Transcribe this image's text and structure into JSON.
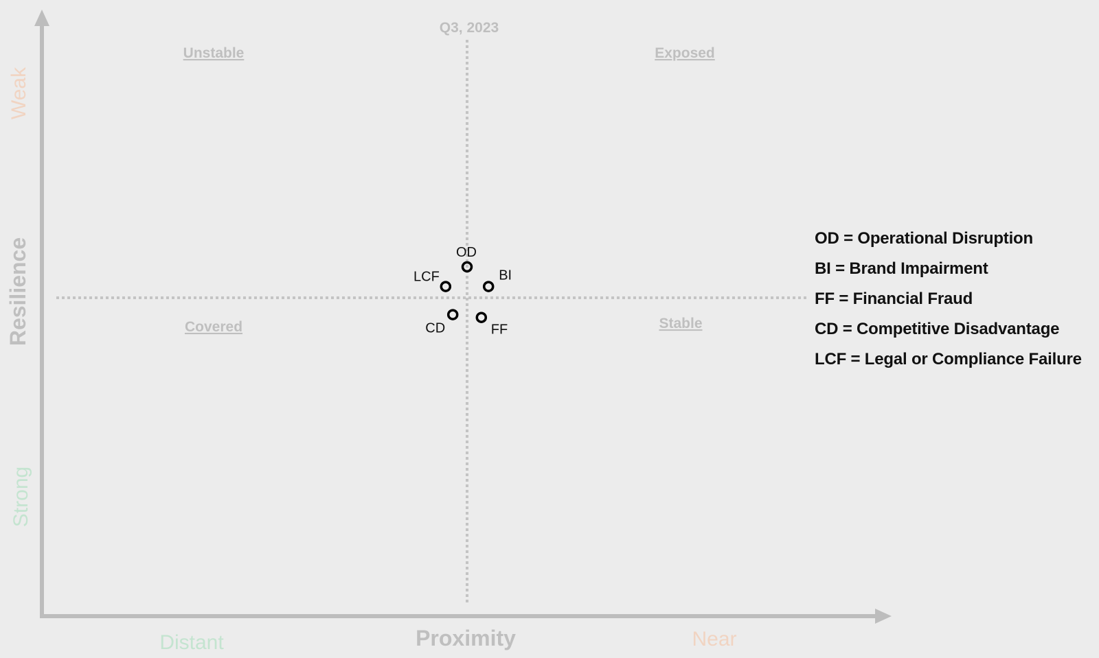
{
  "chart_data": {
    "type": "scatter",
    "title": "Q3, 2023",
    "xlabel": "Proximity",
    "ylabel": "Resilience",
    "xlim": [
      -1,
      1
    ],
    "ylim": [
      -1,
      1
    ],
    "x_low_label": "Distant",
    "x_high_label": "Near",
    "y_low_label": "Strong",
    "y_high_label": "Weak",
    "quadrants": {
      "top_left": "Unstable",
      "top_right": "Exposed",
      "bottom_left": "Covered",
      "bottom_right": "Stable"
    },
    "points": [
      {
        "label": "OD",
        "x": 0.0,
        "y": 0.11
      },
      {
        "label": "BI",
        "x": 0.06,
        "y": 0.04
      },
      {
        "label": "LCF",
        "x": -0.06,
        "y": 0.04
      },
      {
        "label": "CD",
        "x": -0.04,
        "y": -0.06
      },
      {
        "label": "FF",
        "x": 0.04,
        "y": -0.07
      }
    ],
    "legend": [
      "OD = Operational Disruption",
      "BI = Brand Impairment",
      "FF = Financial Fraud",
      "CD = Competitive Disadvantage",
      "LCF = Legal or Compliance Failure"
    ],
    "colors": {
      "axis": "#bdbdbd",
      "grid": "#c4c4c4",
      "quadrant_label": "#bfbfbf",
      "weak_near": "#f1d4c2",
      "strong_distant": "#c4e4d0",
      "point": "#000000"
    }
  }
}
